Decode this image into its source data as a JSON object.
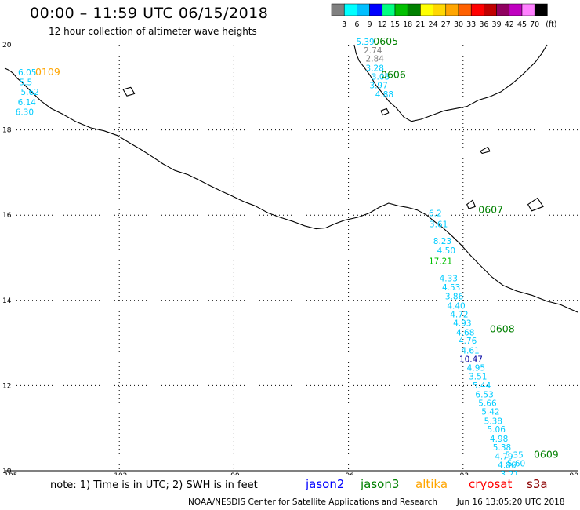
{
  "header": {
    "title": "00:00 – 11:59 UTC 06/15/2018",
    "subtitle": "12 hour collection of altimeter wave heights"
  },
  "scale": {
    "labels": [
      "3",
      "6",
      "9",
      "12",
      "15",
      "18",
      "21",
      "24",
      "27",
      "30",
      "33",
      "36",
      "39",
      "42",
      "45",
      "70"
    ],
    "unit": "(ft)",
    "colors": [
      "#808080",
      "#00ffff",
      "#00bfff",
      "#0000ff",
      "#00ff80",
      "#00c000",
      "#008000",
      "#ffff00",
      "#ffd700",
      "#ffa500",
      "#ff6000",
      "#ff0000",
      "#c00000",
      "#900060",
      "#c000c0",
      "#ff80ff",
      "#000000"
    ]
  },
  "axes": {
    "lon_labels": [
      "-105",
      "-102",
      "-99",
      "-96",
      "-93",
      "-90"
    ],
    "lat_labels": [
      "20",
      "18",
      "16",
      "14",
      "12",
      "10"
    ]
  },
  "footer": {
    "note": "note: 1) Time is in UTC; 2) SWH is in feet",
    "missions": [
      {
        "name": "jason2",
        "color": "#0000ff"
      },
      {
        "name": "jason3",
        "color": "#008000"
      },
      {
        "name": "altika",
        "color": "#ffa500"
      },
      {
        "name": "cryosat",
        "color": "#ff0000"
      },
      {
        "name": "s3a",
        "color": "#8b0000"
      }
    ],
    "credit_left": "NOAA/NESDIS Center for Satellite Applications and Research",
    "credit_right": "Jun 16 13:05:20 UTC 2018"
  },
  "track_labels": [
    {
      "text": "0109",
      "color": "#ffa500",
      "lon": -104.2,
      "lat": 19.28
    },
    {
      "text": "0605",
      "color": "#008000",
      "lon": -95.35,
      "lat": 20.0
    },
    {
      "text": "0606",
      "color": "#008000",
      "lon": -95.15,
      "lat": 19.22
    },
    {
      "text": "0607",
      "color": "#008000",
      "lon": -92.6,
      "lat": 16.05
    },
    {
      "text": "0608",
      "color": "#008000",
      "lon": -92.3,
      "lat": 13.25
    },
    {
      "text": "0609",
      "color": "#008000",
      "lon": -91.15,
      "lat": 10.3
    }
  ],
  "chart_data": {
    "type": "scatter",
    "title": "00:00 – 11:59 UTC 06/15/2018",
    "subtitle": "12 hour collection of altimeter wave heights",
    "xlabel": "",
    "ylabel": "",
    "xlim": [
      -105,
      -90
    ],
    "ylim": [
      10,
      20
    ],
    "grid": true,
    "legend": "bottom",
    "series": [
      {
        "name": "0109",
        "points": [
          {
            "lon": -104.65,
            "lat": 19.28,
            "swh": "6.05",
            "color": "#00ccff"
          },
          {
            "lon": -104.62,
            "lat": 19.05,
            "swh": "5.5",
            "color": "#00ccff"
          },
          {
            "lon": -104.58,
            "lat": 18.82,
            "swh": "5.62",
            "color": "#00ccff"
          },
          {
            "lon": -104.66,
            "lat": 18.58,
            "swh": "6.14",
            "color": "#00ccff"
          },
          {
            "lon": -104.72,
            "lat": 18.35,
            "swh": "6.30",
            "color": "#00ccff"
          }
        ]
      },
      {
        "name": "0605",
        "points": [
          {
            "lon": -95.8,
            "lat": 20.0,
            "swh": "5.39",
            "color": "#00ccff"
          },
          {
            "lon": -95.6,
            "lat": 19.8,
            "swh": "2.74",
            "color": "#808080"
          },
          {
            "lon": -95.55,
            "lat": 19.6,
            "swh": "2.84",
            "color": "#808080"
          },
          {
            "lon": -95.55,
            "lat": 19.38,
            "swh": "3.28",
            "color": "#00ccff"
          },
          {
            "lon": -95.4,
            "lat": 19.18,
            "swh": "3.03",
            "color": "#00ccff"
          }
        ]
      },
      {
        "name": "0606",
        "points": [
          {
            "lon": -95.45,
            "lat": 18.98,
            "swh": "3.97",
            "color": "#00ccff"
          },
          {
            "lon": -95.3,
            "lat": 18.77,
            "swh": "4.88",
            "color": "#00ccff"
          }
        ]
      },
      {
        "name": "0607",
        "points": [
          {
            "lon": -93.9,
            "lat": 15.98,
            "swh": "6.2",
            "color": "#00ccff"
          },
          {
            "lon": -93.88,
            "lat": 15.72,
            "swh": "3.61",
            "color": "#00ccff"
          },
          {
            "lon": -93.78,
            "lat": 15.32,
            "swh": "8.23",
            "color": "#00ccff"
          },
          {
            "lon": -93.68,
            "lat": 15.1,
            "swh": "4.50",
            "color": "#00ccff"
          },
          {
            "lon": -93.9,
            "lat": 14.85,
            "swh": "17.21",
            "color": "#00c000"
          },
          {
            "lon": -93.62,
            "lat": 14.45,
            "swh": "4.33",
            "color": "#00ccff"
          },
          {
            "lon": -93.55,
            "lat": 14.24,
            "swh": "4.53",
            "color": "#00ccff"
          },
          {
            "lon": -93.47,
            "lat": 14.02,
            "swh": "3.86",
            "color": "#00ccff"
          },
          {
            "lon": -93.42,
            "lat": 13.8,
            "swh": "4.40",
            "color": "#00ccff"
          },
          {
            "lon": -93.34,
            "lat": 13.6,
            "swh": "4.72",
            "color": "#00ccff"
          },
          {
            "lon": -93.26,
            "lat": 13.4,
            "swh": "4.93",
            "color": "#00ccff"
          },
          {
            "lon": -93.18,
            "lat": 13.18,
            "swh": "4.68",
            "color": "#00ccff"
          },
          {
            "lon": -93.12,
            "lat": 12.98,
            "swh": "4.76",
            "color": "#00ccff"
          },
          {
            "lon": -93.05,
            "lat": 12.75,
            "swh": "4.61",
            "color": "#00ccff"
          }
        ]
      },
      {
        "name": "0608",
        "points": [
          {
            "lon": -93.1,
            "lat": 12.55,
            "swh": "10.47",
            "color": "#0000a0"
          },
          {
            "lon": -92.9,
            "lat": 12.35,
            "swh": "4.95",
            "color": "#00ccff"
          },
          {
            "lon": -92.85,
            "lat": 12.15,
            "swh": "3.51",
            "color": "#00ccff"
          },
          {
            "lon": -92.75,
            "lat": 11.93,
            "swh": "5.44",
            "color": "#00ccff"
          },
          {
            "lon": -92.68,
            "lat": 11.72,
            "swh": "6.53",
            "color": "#00ccff"
          },
          {
            "lon": -92.6,
            "lat": 11.52,
            "swh": "5.66",
            "color": "#00ccff"
          },
          {
            "lon": -92.52,
            "lat": 11.32,
            "swh": "5.42",
            "color": "#00ccff"
          },
          {
            "lon": -92.45,
            "lat": 11.1,
            "swh": "5.38",
            "color": "#00ccff"
          },
          {
            "lon": -92.37,
            "lat": 10.9,
            "swh": "5.06",
            "color": "#00ccff"
          },
          {
            "lon": -92.3,
            "lat": 10.68,
            "swh": "4.98",
            "color": "#00ccff"
          },
          {
            "lon": -92.22,
            "lat": 10.48,
            "swh": "5.38",
            "color": "#00ccff"
          },
          {
            "lon": -92.17,
            "lat": 10.27,
            "swh": "4.79",
            "color": "#00ccff"
          },
          {
            "lon": -92.09,
            "lat": 10.06,
            "swh": "4.86",
            "color": "#00ccff"
          },
          {
            "lon": -92.02,
            "lat": 9.85,
            "swh": "3.21",
            "color": "#00ccff"
          }
        ]
      },
      {
        "name": "0609",
        "points": [
          {
            "lon": -91.9,
            "lat": 10.3,
            "swh": "5.35",
            "color": "#00ccff"
          },
          {
            "lon": -91.85,
            "lat": 10.1,
            "swh": "5.60",
            "color": "#00ccff"
          }
        ]
      }
    ]
  },
  "coastline": [
    [
      -105,
      19.45
    ],
    [
      -104.88,
      19.4
    ],
    [
      -104.78,
      19.33
    ],
    [
      -104.68,
      19.22
    ],
    [
      -104.55,
      19.12
    ],
    [
      -104.42,
      19.0
    ],
    [
      -104.28,
      18.88
    ],
    [
      -104.05,
      18.68
    ],
    [
      -103.78,
      18.5
    ],
    [
      -103.5,
      18.38
    ],
    [
      -103.15,
      18.2
    ],
    [
      -102.75,
      18.05
    ],
    [
      -102.4,
      17.98
    ],
    [
      -102.05,
      17.87
    ],
    [
      -101.7,
      17.68
    ],
    [
      -101.45,
      17.55
    ],
    [
      -101.15,
      17.38
    ],
    [
      -100.85,
      17.2
    ],
    [
      -100.55,
      17.05
    ],
    [
      -100.2,
      16.95
    ],
    [
      -99.9,
      16.82
    ],
    [
      -99.6,
      16.68
    ],
    [
      -99.3,
      16.55
    ],
    [
      -99.05,
      16.45
    ],
    [
      -98.75,
      16.32
    ],
    [
      -98.45,
      16.22
    ],
    [
      -98.1,
      16.05
    ],
    [
      -97.8,
      15.95
    ],
    [
      -97.45,
      15.85
    ],
    [
      -97.15,
      15.75
    ],
    [
      -96.85,
      15.68
    ],
    [
      -96.6,
      15.7
    ],
    [
      -96.35,
      15.8
    ],
    [
      -96.1,
      15.88
    ],
    [
      -95.75,
      15.95
    ],
    [
      -95.45,
      16.05
    ],
    [
      -95.2,
      16.18
    ],
    [
      -94.95,
      16.28
    ],
    [
      -94.7,
      16.22
    ],
    [
      -94.45,
      16.18
    ],
    [
      -94.2,
      16.12
    ],
    [
      -93.95,
      16.0
    ],
    [
      -93.75,
      15.85
    ],
    [
      -93.55,
      15.72
    ],
    [
      -93.3,
      15.52
    ],
    [
      -93.05,
      15.3
    ],
    [
      -92.8,
      15.05
    ],
    [
      -92.55,
      14.82
    ],
    [
      -92.25,
      14.55
    ],
    [
      -91.95,
      14.35
    ],
    [
      -91.6,
      14.22
    ],
    [
      -91.2,
      14.12
    ],
    [
      -90.8,
      13.98
    ],
    [
      -90.45,
      13.9
    ],
    [
      -90.2,
      13.8
    ],
    [
      -90.0,
      13.72
    ]
  ],
  "gulf_coast": [
    [
      -95.85,
      20.0
    ],
    [
      -95.8,
      19.8
    ],
    [
      -95.72,
      19.62
    ],
    [
      -95.6,
      19.48
    ],
    [
      -95.45,
      19.3
    ],
    [
      -95.28,
      19.05
    ],
    [
      -95.1,
      18.85
    ],
    [
      -94.95,
      18.68
    ],
    [
      -94.75,
      18.52
    ],
    [
      -94.55,
      18.3
    ],
    [
      -94.35,
      18.2
    ],
    [
      -94.1,
      18.25
    ],
    [
      -93.8,
      18.35
    ],
    [
      -93.5,
      18.45
    ],
    [
      -93.2,
      18.5
    ],
    [
      -92.9,
      18.55
    ],
    [
      -92.6,
      18.7
    ],
    [
      -92.3,
      18.78
    ],
    [
      -92.0,
      18.9
    ],
    [
      -91.7,
      19.1
    ],
    [
      -91.5,
      19.25
    ],
    [
      -91.3,
      19.42
    ],
    [
      -91.1,
      19.6
    ],
    [
      -90.95,
      19.78
    ],
    [
      -90.8,
      20.0
    ]
  ],
  "islands": [
    [
      [
        -101.9,
        18.95
      ],
      [
        -101.7,
        19.0
      ],
      [
        -101.6,
        18.85
      ],
      [
        -101.8,
        18.8
      ]
    ],
    [
      [
        -95.15,
        18.45
      ],
      [
        -95.0,
        18.5
      ],
      [
        -94.95,
        18.4
      ],
      [
        -95.1,
        18.35
      ]
    ],
    [
      [
        -92.55,
        17.5
      ],
      [
        -92.35,
        17.6
      ],
      [
        -92.3,
        17.5
      ],
      [
        -92.5,
        17.45
      ]
    ],
    [
      [
        -92.9,
        16.25
      ],
      [
        -92.75,
        16.35
      ],
      [
        -92.68,
        16.2
      ],
      [
        -92.85,
        16.15
      ]
    ],
    [
      [
        -91.3,
        16.25
      ],
      [
        -91.05,
        16.4
      ],
      [
        -90.9,
        16.2
      ],
      [
        -91.2,
        16.1
      ]
    ]
  ]
}
